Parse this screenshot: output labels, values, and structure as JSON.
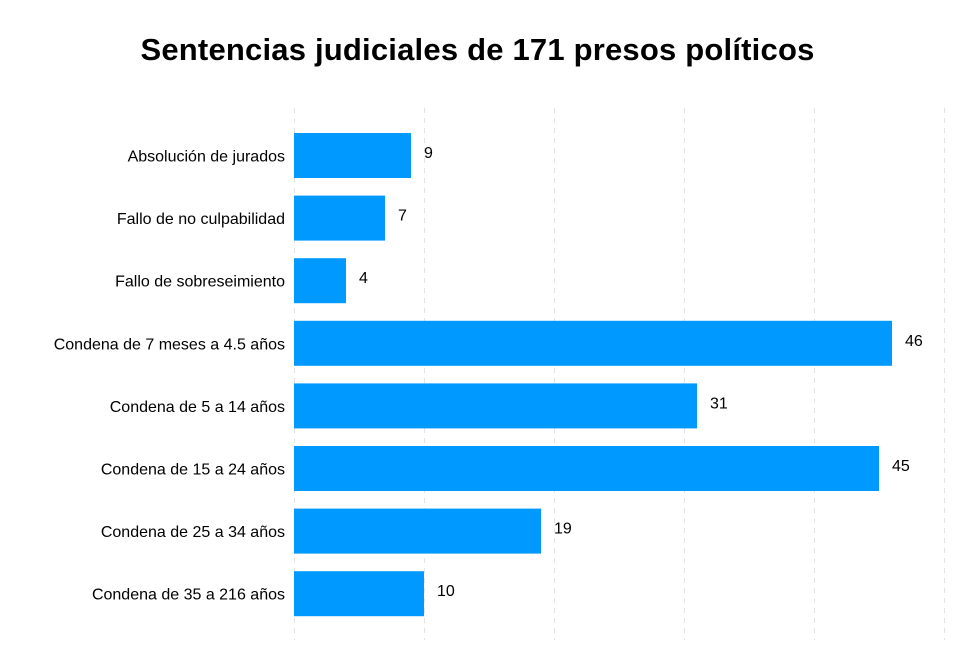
{
  "chart_data": {
    "type": "bar",
    "orientation": "horizontal",
    "title": "Sentencias judiciales de 171 presos políticos",
    "categories": [
      "Absolución de jurados",
      "Fallo de no culpabilidad",
      "Fallo de sobreseimiento",
      "Condena de 7 meses a 4.5 años",
      "Condena de 5 a 14 años",
      "Condena de 15 a 24 años",
      "Condena de 25 a 34 años",
      "Condena de 35 a 216 años"
    ],
    "values": [
      9,
      7,
      4,
      46,
      31,
      45,
      19,
      10
    ],
    "xlim": [
      0,
      50
    ],
    "grid": true,
    "bar_color": "#0099ff",
    "grid_color": "#e3e3e3"
  }
}
